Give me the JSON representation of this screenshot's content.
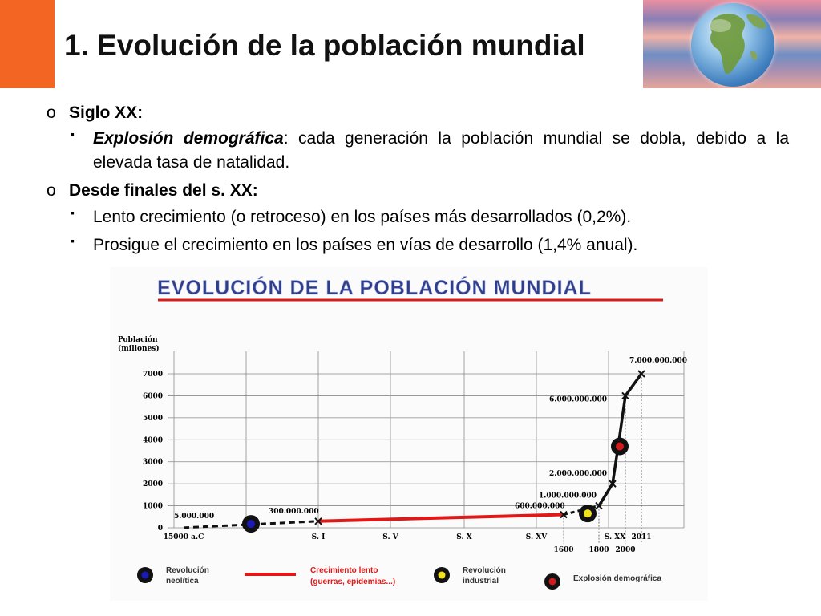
{
  "slide": {
    "title": "1. Evolución de la población mundial"
  },
  "bullets": {
    "item1": {
      "marker": "o",
      "label": "Siglo XX:"
    },
    "item1_sub": {
      "marker": "▪",
      "emph": "Explosión demográfica",
      "text": ": cada generación la población mundial se dobla, debido a la elevada tasa de natalidad."
    },
    "item2": {
      "marker": "o",
      "label": "Desde finales del s. XX:"
    },
    "item2_sub1": {
      "marker": "▪",
      "text": "Lento crecimiento (o retroceso) en los países más desarrollados (0,2%)."
    },
    "item2_sub2": {
      "marker": "▪",
      "text": "Prosigue el crecimiento en los países en vías de desarrollo (1,4% anual)."
    }
  },
  "colors": {
    "accent": "#f26522",
    "neolithic": "#1a1ab4",
    "slow_growth": "#e01818",
    "industrial": "#f2e01a",
    "explosion": "#d41a1a",
    "title_underline": "#d81c1c"
  },
  "icons": {
    "globe": "earth-globe-icon"
  },
  "chart_data": {
    "type": "line",
    "title": "EVOLUCIÓN DE LA POBLACIÓN MUNDIAL",
    "ylabel": "Población (millones)",
    "ylim": [
      0,
      7000
    ],
    "yticks": [
      0,
      1000,
      2000,
      3000,
      4000,
      5000,
      6000,
      7000
    ],
    "ytick_labels": [
      "0",
      "1000",
      "2000",
      "3000",
      "4000",
      "5000",
      "6000",
      "7000"
    ],
    "grid": true,
    "x_tick_labels": [
      "15000 a.C",
      "S. I",
      "S. V",
      "S. X",
      "S. XV",
      "1600",
      "1800",
      "S. XX",
      "2000",
      "2011"
    ],
    "series": [
      {
        "segment": "neolithic",
        "x": [
          "15000 a.C",
          "S. I"
        ],
        "values": [
          5,
          300
        ]
      },
      {
        "segment": "slow",
        "x": [
          "S. I",
          "1600"
        ],
        "values": [
          300,
          600
        ]
      },
      {
        "segment": "industrial",
        "x": [
          "1600",
          "1800"
        ],
        "values": [
          600,
          1000
        ]
      },
      {
        "segment": "explosion",
        "x": [
          "1800",
          "2011"
        ],
        "values": [
          1000,
          7000
        ]
      }
    ],
    "point_labels": [
      "5.000.000",
      "300.000.000",
      "600.000.000",
      "1.000.000.000",
      "2.000.000.000",
      "6.000.000.000",
      "7.000.000.000"
    ],
    "legend": [
      {
        "label": "Revolución neolítica",
        "line1": "Revolución",
        "line2": "neolítica"
      },
      {
        "label": "Crecimiento lento (guerras, epidemias...)",
        "line1": "Crecimiento lento",
        "line2": "(guerras, epidemias...)"
      },
      {
        "label": "Revolución industrial",
        "line1": "Revolución",
        "line2": "industrial"
      },
      {
        "label": "Explosión demográfica",
        "line1": "Explosión demográfica",
        "line2": ""
      }
    ],
    "legend_position": "bottom"
  }
}
